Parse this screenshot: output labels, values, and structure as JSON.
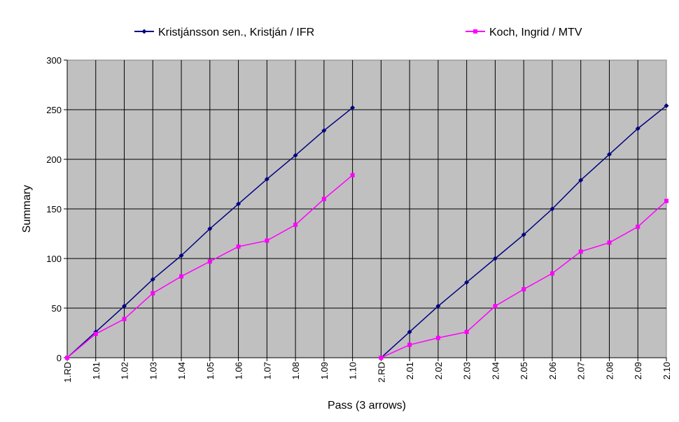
{
  "chart_data": {
    "type": "line",
    "title": "",
    "xlabel": "Pass (3 arrows)",
    "ylabel": "Summary",
    "ylim": [
      0,
      300
    ],
    "yticks": [
      0,
      50,
      100,
      150,
      200,
      250,
      300
    ],
    "grid": true,
    "legend_position": "top",
    "plot_background": "#c0c0c0",
    "categories": [
      "1.RD",
      "1.01",
      "1.02",
      "1.03",
      "1.04",
      "1.05",
      "1.06",
      "1.07",
      "1.08",
      "1.09",
      "1.10",
      "2.RD",
      "2.01",
      "2.02",
      "2.03",
      "2.04",
      "2.05",
      "2.06",
      "2.07",
      "2.08",
      "2.09",
      "2.10"
    ],
    "series": [
      {
        "name": "Kristjánsson sen., Kristján / IFR",
        "color": "#000080",
        "marker": "diamond",
        "values": [
          0,
          26,
          52,
          79,
          103,
          130,
          155,
          180,
          204,
          229,
          252,
          0,
          26,
          52,
          76,
          100,
          124,
          150,
          179,
          205,
          231,
          254
        ]
      },
      {
        "name": "Koch, Ingrid / MTV",
        "color": "#ff00ff",
        "marker": "square",
        "values": [
          0,
          24,
          39,
          65,
          82,
          97,
          112,
          118,
          134,
          160,
          184,
          0,
          13,
          20,
          26,
          52,
          69,
          85,
          107,
          116,
          132,
          158
        ]
      }
    ],
    "segments": [
      [
        0,
        10
      ],
      [
        11,
        21
      ]
    ]
  }
}
